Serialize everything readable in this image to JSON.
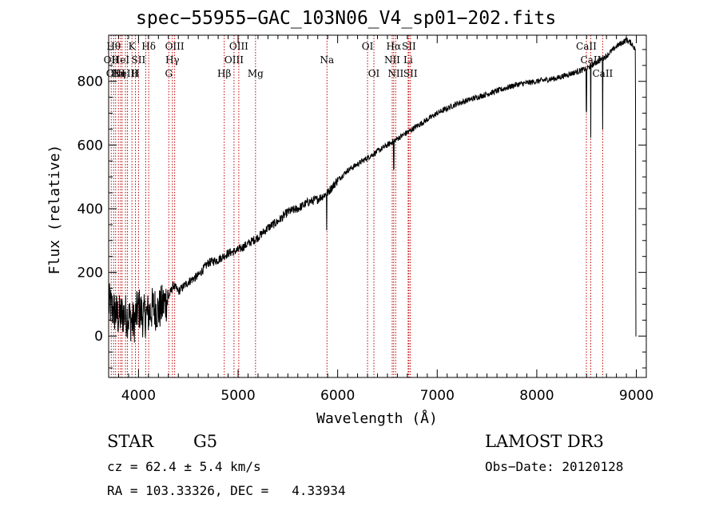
{
  "chart_data": {
    "type": "line",
    "title": "spec−55955−GAC_103N06_V4_sp01−202.fits",
    "xlabel": "Wavelength (Å)",
    "ylabel": "Flux (relative)",
    "xlim": [
      3700,
      9100
    ],
    "ylim": [
      -130,
      945
    ],
    "xticks": [
      4000,
      5000,
      6000,
      7000,
      8000,
      9000
    ],
    "yticks": [
      0,
      200,
      400,
      600,
      800
    ],
    "series": [
      {
        "name": "spectrum",
        "x": [
          3700,
          3750,
          3800,
          3850,
          3900,
          3950,
          4000,
          4050,
          4100,
          4150,
          4200,
          4250,
          4300,
          4350,
          4400,
          4500,
          4600,
          4700,
          4800,
          4900,
          5000,
          5100,
          5200,
          5300,
          5400,
          5500,
          5600,
          5700,
          5800,
          5900,
          6000,
          6100,
          6200,
          6300,
          6400,
          6500,
          6600,
          6700,
          6800,
          6900,
          7000,
          7200,
          7400,
          7600,
          7800,
          8000,
          8200,
          8400,
          8500,
          8600,
          8700,
          8800,
          8900,
          8950,
          8990
        ],
        "y": [
          100,
          80,
          60,
          70,
          60,
          40,
          90,
          60,
          70,
          90,
          80,
          100,
          120,
          160,
          140,
          170,
          190,
          230,
          240,
          260,
          270,
          290,
          310,
          340,
          360,
          390,
          400,
          420,
          430,
          450,
          490,
          520,
          540,
          560,
          580,
          600,
          620,
          640,
          660,
          680,
          700,
          730,
          750,
          770,
          790,
          800,
          810,
          830,
          840,
          860,
          880,
          910,
          930,
          920,
          900
        ]
      }
    ],
    "absorption_lines": [
      {
        "x": 5890,
        "depth": 110
      },
      {
        "x": 6563,
        "depth": 90
      },
      {
        "x": 8498,
        "depth": 140
      },
      {
        "x": 8542,
        "depth": 230
      },
      {
        "x": 8662,
        "depth": 220
      }
    ],
    "ref_lines": [
      {
        "x": 3726,
        "label": "OII",
        "row": 1
      },
      {
        "x": 3750,
        "label": "Hθ",
        "row": 0
      },
      {
        "x": 3770,
        "label": "OIII",
        "row": 2
      },
      {
        "x": 3798,
        "label": "Hη",
        "row": 2
      },
      {
        "x": 3820,
        "label": "HeI",
        "row": 1
      },
      {
        "x": 3835,
        "label": "",
        "row": 0
      },
      {
        "x": 3869,
        "label": "NeIII",
        "row": 2
      },
      {
        "x": 3889,
        "label": "",
        "row": 0
      },
      {
        "x": 3934,
        "label": "K",
        "row": 0
      },
      {
        "x": 3969,
        "label": "H",
        "row": 2
      },
      {
        "x": 4000,
        "label": "SII",
        "row": 1
      },
      {
        "x": 4072,
        "label": "",
        "row": 0
      },
      {
        "x": 4102,
        "label": "Hδ",
        "row": 0
      },
      {
        "x": 4304,
        "label": "G",
        "row": 2
      },
      {
        "x": 4340,
        "label": "Hγ",
        "row": 1
      },
      {
        "x": 4363,
        "label": "OIII",
        "row": 0
      },
      {
        "x": 4861,
        "label": "Hβ",
        "row": 2
      },
      {
        "x": 4959,
        "label": "OIII",
        "row": 1
      },
      {
        "x": 5007,
        "label": "OIII",
        "row": 0
      },
      {
        "x": 5175,
        "label": "Mg",
        "row": 2
      },
      {
        "x": 5893,
        "label": "Na",
        "row": 1
      },
      {
        "x": 6300,
        "label": "OI",
        "row": 0
      },
      {
        "x": 6364,
        "label": "OI",
        "row": 2
      },
      {
        "x": 6548,
        "label": "NII",
        "row": 1
      },
      {
        "x": 6563,
        "label": "Hα",
        "row": 0
      },
      {
        "x": 6583,
        "label": "NII",
        "row": 2
      },
      {
        "x": 6708,
        "label": "Li",
        "row": 1
      },
      {
        "x": 6716,
        "label": "SII",
        "row": 0
      },
      {
        "x": 6731,
        "label": "SII",
        "row": 2
      },
      {
        "x": 8498,
        "label": "CaII",
        "row": 0
      },
      {
        "x": 8542,
        "label": "CaII",
        "row": 1
      },
      {
        "x": 8662,
        "label": "CaII",
        "row": 2
      }
    ]
  },
  "info": {
    "class": "STAR",
    "subclass": "G5",
    "survey": "LAMOST DR3",
    "cz": "cz = 62.4 ± 5.4 km/s",
    "obs_date": "Obs−Date: 20120128",
    "radec": "RA = 103.33326, DEC =   4.33934"
  }
}
